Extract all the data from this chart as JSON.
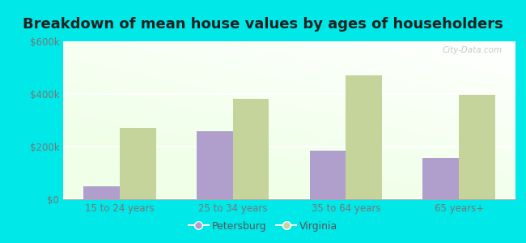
{
  "title": "Breakdown of mean house values by ages of householders",
  "categories": [
    "15 to 24 years",
    "25 to 34 years",
    "35 to 64 years",
    "65 years+"
  ],
  "petersburg_values": [
    50000,
    258000,
    185000,
    158000
  ],
  "virginia_values": [
    272000,
    383000,
    472000,
    397000
  ],
  "petersburg_color": "#b09fcc",
  "virginia_color": "#c5d49a",
  "ylim": [
    0,
    600000
  ],
  "yticks": [
    0,
    200000,
    400000,
    600000
  ],
  "ytick_labels": [
    "$0",
    "$200k",
    "$400k",
    "$600k"
  ],
  "outer_background": "#00e8e8",
  "bar_width": 0.32,
  "title_fontsize": 13,
  "legend_labels": [
    "Petersburg",
    "Virginia"
  ],
  "watermark": "City-Data.com"
}
